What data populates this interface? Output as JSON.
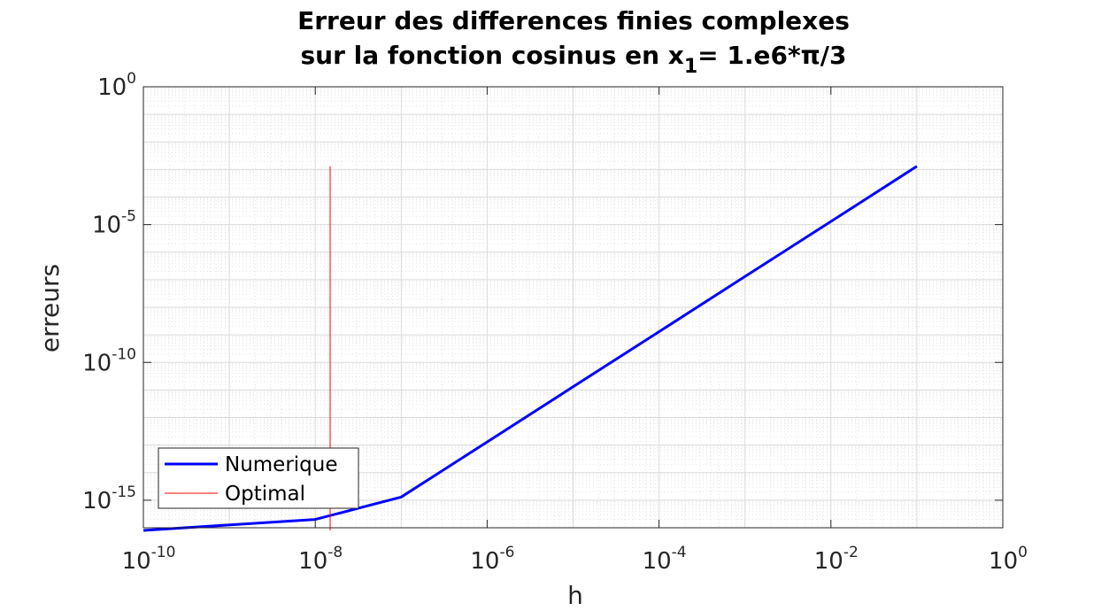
{
  "chart_data": {
    "type": "line",
    "title_line1": "Erreur des differences finies complexes",
    "title_line2_pre": "sur la fonction cosinus en x",
    "title_sub": "1",
    "title_line2_post": "= 1.e6*π/3",
    "xlabel": "h",
    "ylabel": "erreurs",
    "xscale": "log",
    "yscale": "log",
    "xlim_exp": [
      -10,
      0
    ],
    "ylim_exp": [
      -16,
      0
    ],
    "x_ticks": [
      {
        "base": "10",
        "exp": "-10"
      },
      {
        "base": "10",
        "exp": "-8"
      },
      {
        "base": "10",
        "exp": "-6"
      },
      {
        "base": "10",
        "exp": "-4"
      },
      {
        "base": "10",
        "exp": "-2"
      },
      {
        "base": "10",
        "exp": "0"
      }
    ],
    "x_tick_exps": [
      -10,
      -8,
      -6,
      -4,
      -2,
      0
    ],
    "y_ticks": [
      {
        "base": "10",
        "exp": "0"
      },
      {
        "base": "10",
        "exp": "-5"
      },
      {
        "base": "10",
        "exp": "-10"
      },
      {
        "base": "10",
        "exp": "-15"
      }
    ],
    "y_tick_exps": [
      0,
      -5,
      -10,
      -15
    ],
    "grid": true,
    "minor_grid": true,
    "legend_position": "bottom-left",
    "series": [
      {
        "name": "Numerique",
        "color": "#0000ff",
        "x": [
          1e-10,
          1e-08,
          1e-07,
          1e-06,
          1e-05,
          0.0001,
          0.001,
          0.01,
          0.1
        ],
        "y": [
          8e-17,
          2e-16,
          1.3e-15,
          1.3e-13,
          1.3e-11,
          1.3e-09,
          1.3e-07,
          1.3e-05,
          0.0013
        ]
      },
      {
        "name": "Optimal",
        "color": "#ff0000",
        "x": [
          1.49e-08,
          1.49e-08
        ],
        "y": [
          8e-17,
          0.0013
        ]
      }
    ]
  }
}
